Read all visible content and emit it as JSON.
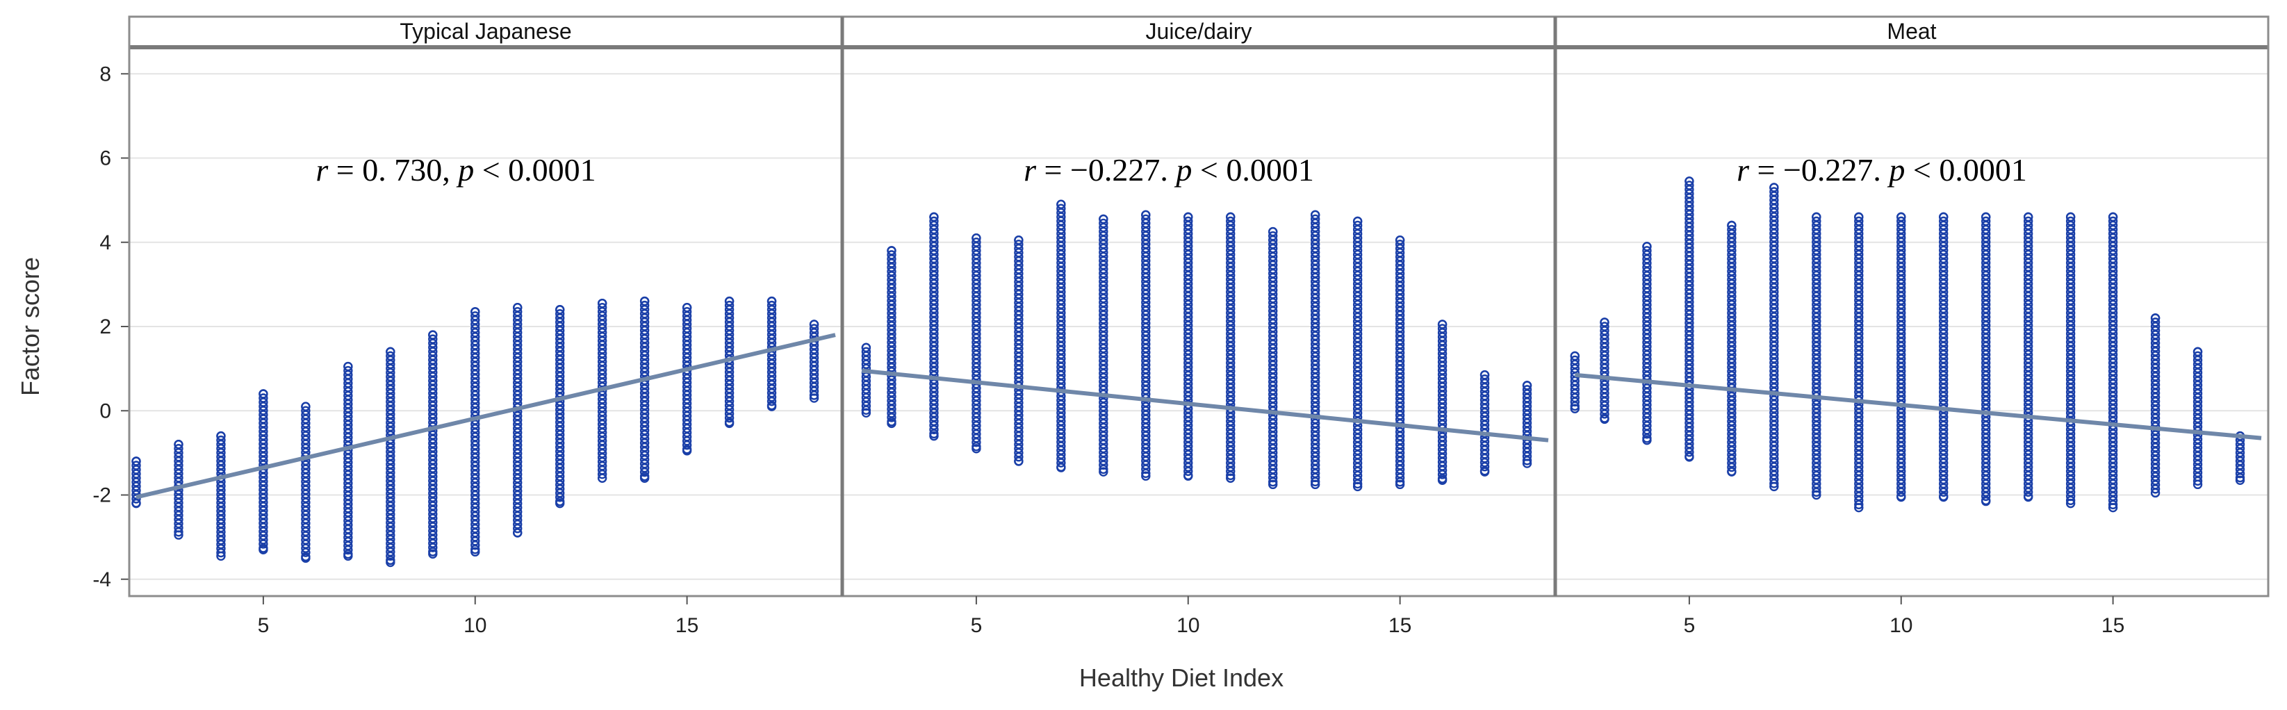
{
  "chart_data": {
    "type": "scatter",
    "ylabel": "Factor score",
    "xlabel": "Healthy Diet Index",
    "xlim": [
      2,
      18.5
    ],
    "ylim": [
      -4.4,
      8.4
    ],
    "x_ticks": [
      5,
      10,
      15
    ],
    "y_ticks": [
      -4,
      -2,
      0,
      2,
      4,
      6,
      8
    ],
    "x_tick_labels": [
      "5",
      "10",
      "15"
    ],
    "y_tick_labels": [
      "-4",
      "-2",
      "0",
      "2",
      "4",
      "6",
      "8"
    ],
    "grid": true,
    "panels": [
      {
        "title": "Typical Japanese",
        "stat": {
          "r_label": "r",
          "eq": " = 0. 730, ",
          "p_label": "p",
          "rest": " < 0.0001"
        },
        "fit_line": {
          "x": [
            2,
            18.5
          ],
          "y": [
            -2.05,
            1.8
          ]
        },
        "columns": [
          {
            "x": 2,
            "ymin": -2.2,
            "ymax": -1.2
          },
          {
            "x": 3,
            "ymin": -2.95,
            "ymax": -0.8
          },
          {
            "x": 4,
            "ymin": -3.45,
            "ymax": -0.6
          },
          {
            "x": 5,
            "ymin": -3.3,
            "ymax": 0.4
          },
          {
            "x": 6,
            "ymin": -3.5,
            "ymax": 0.1
          },
          {
            "x": 7,
            "ymin": -3.45,
            "ymax": 1.05
          },
          {
            "x": 8,
            "ymin": -3.6,
            "ymax": 1.4
          },
          {
            "x": 9,
            "ymin": -3.4,
            "ymax": 1.8
          },
          {
            "x": 10,
            "ymin": -3.35,
            "ymax": 2.35
          },
          {
            "x": 11,
            "ymin": -2.9,
            "ymax": 2.45
          },
          {
            "x": 12,
            "ymin": -2.2,
            "ymax": 2.4
          },
          {
            "x": 13,
            "ymin": -1.6,
            "ymax": 2.55
          },
          {
            "x": 14,
            "ymin": -1.6,
            "ymax": 2.6
          },
          {
            "x": 15,
            "ymin": -0.95,
            "ymax": 2.45
          },
          {
            "x": 16,
            "ymin": -0.3,
            "ymax": 2.6
          },
          {
            "x": 17,
            "ymin": 0.1,
            "ymax": 2.6
          },
          {
            "x": 18,
            "ymin": 0.3,
            "ymax": 2.05
          }
        ]
      },
      {
        "title": "Juice/dairy",
        "stat": {
          "r_label": "r",
          "eq": " = −0.227. ",
          "p_label": "p",
          "rest": " < 0.0001"
        },
        "fit_line": {
          "x": [
            2.3,
            18.5
          ],
          "y": [
            0.95,
            -0.7
          ]
        },
        "columns": [
          {
            "x": 2.4,
            "ymin": -0.05,
            "ymax": 1.5
          },
          {
            "x": 3,
            "ymin": -0.3,
            "ymax": 3.8
          },
          {
            "x": 4,
            "ymin": -0.6,
            "ymax": 4.6
          },
          {
            "x": 5,
            "ymin": -0.9,
            "ymax": 4.1
          },
          {
            "x": 6,
            "ymin": -1.2,
            "ymax": 4.05
          },
          {
            "x": 7,
            "ymin": -1.35,
            "ymax": 4.9
          },
          {
            "x": 8,
            "ymin": -1.45,
            "ymax": 4.55
          },
          {
            "x": 9,
            "ymin": -1.55,
            "ymax": 4.65
          },
          {
            "x": 10,
            "ymin": -1.55,
            "ymax": 4.6
          },
          {
            "x": 11,
            "ymin": -1.6,
            "ymax": 4.6
          },
          {
            "x": 12,
            "ymin": -1.75,
            "ymax": 4.25
          },
          {
            "x": 13,
            "ymin": -1.75,
            "ymax": 4.65
          },
          {
            "x": 14,
            "ymin": -1.8,
            "ymax": 4.5
          },
          {
            "x": 15,
            "ymin": -1.75,
            "ymax": 4.05
          },
          {
            "x": 16,
            "ymin": -1.65,
            "ymax": 2.05
          },
          {
            "x": 17,
            "ymin": -1.45,
            "ymax": 0.85
          },
          {
            "x": 18,
            "ymin": -1.25,
            "ymax": 0.6
          }
        ]
      },
      {
        "title": "Meat",
        "stat": {
          "r_label": "r",
          "eq": " = −0.227. ",
          "p_label": "p",
          "rest": " < 0.0001"
        },
        "fit_line": {
          "x": [
            2.3,
            18.5
          ],
          "y": [
            0.85,
            -0.65
          ]
        },
        "columns": [
          {
            "x": 2.3,
            "ymin": 0.05,
            "ymax": 1.3
          },
          {
            "x": 3,
            "ymin": -0.2,
            "ymax": 2.1
          },
          {
            "x": 4,
            "ymin": -0.7,
            "ymax": 3.9
          },
          {
            "x": 5,
            "ymin": -1.1,
            "ymax": 5.45
          },
          {
            "x": 6,
            "ymin": -1.45,
            "ymax": 4.4
          },
          {
            "x": 7,
            "ymin": -1.8,
            "ymax": 5.3
          },
          {
            "x": 8,
            "ymin": -2.0,
            "ymax": 4.6
          },
          {
            "x": 9,
            "ymin": -2.3,
            "ymax": 4.6
          },
          {
            "x": 10,
            "ymin": -2.05,
            "ymax": 4.6
          },
          {
            "x": 11,
            "ymin": -2.05,
            "ymax": 4.6
          },
          {
            "x": 12,
            "ymin": -2.15,
            "ymax": 4.6
          },
          {
            "x": 13,
            "ymin": -2.05,
            "ymax": 4.6
          },
          {
            "x": 14,
            "ymin": -2.2,
            "ymax": 4.6
          },
          {
            "x": 15,
            "ymin": -2.3,
            "ymax": 4.6
          },
          {
            "x": 16,
            "ymin": -1.95,
            "ymax": 2.2
          },
          {
            "x": 17,
            "ymin": -1.75,
            "ymax": 1.4
          },
          {
            "x": 18,
            "ymin": -1.65,
            "ymax": -0.6
          }
        ]
      }
    ]
  }
}
